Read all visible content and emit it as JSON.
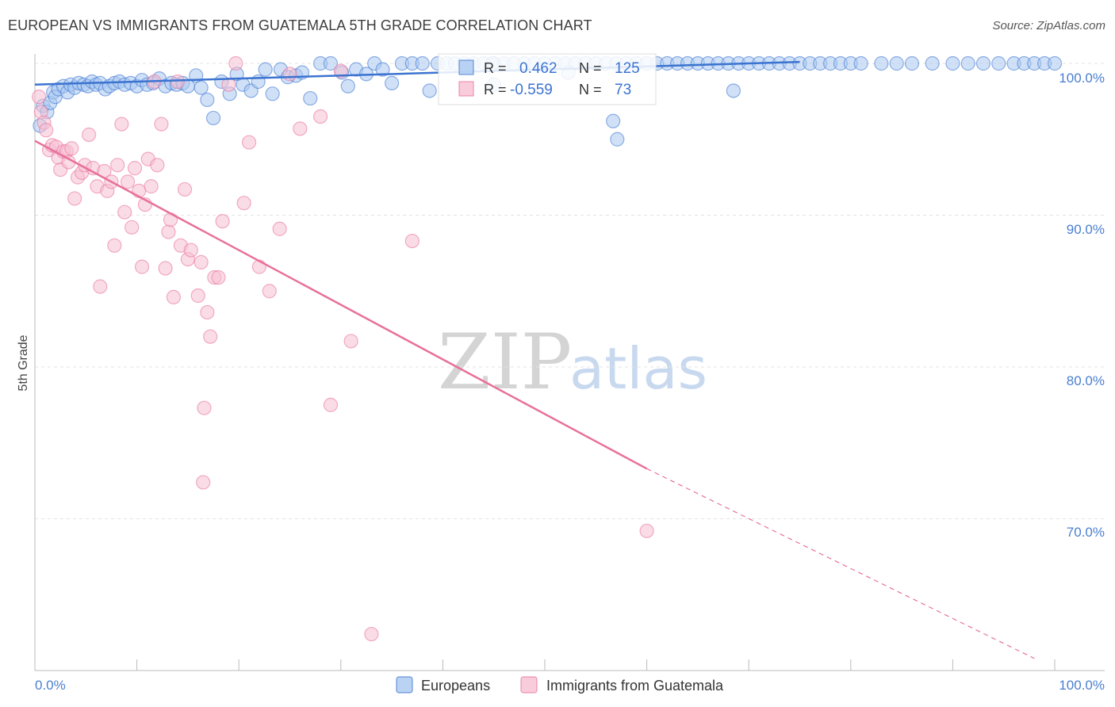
{
  "title": "EUROPEAN VS IMMIGRANTS FROM GUATEMALA 5TH GRADE CORRELATION CHART",
  "source": "Source: ZipAtlas.com",
  "colors": {
    "blue": "#3b73d0",
    "blue_fill": "#a9c8f0",
    "pink": "#e8709a",
    "pink_fill": "#f6bfd1",
    "tick": "#4a7fd0",
    "grid": "#e3e3e3"
  },
  "chart_data": {
    "type": "scatter",
    "title": "EUROPEAN VS IMMIGRANTS FROM GUATEMALA 5TH GRADE CORRELATION CHART",
    "xlabel": "",
    "ylabel": "5th Grade",
    "xlim": [
      0,
      100
    ],
    "ylim": [
      60.5,
      101.5
    ],
    "x_ticks": [
      "0.0%",
      "100.0%"
    ],
    "y_ticks": [
      {
        "value": 100,
        "label": "100.0%"
      },
      {
        "value": 90,
        "label": "90.0%"
      },
      {
        "value": 80,
        "label": "80.0%"
      },
      {
        "value": 70,
        "label": "70.0%"
      }
    ],
    "legend_position": "bottom",
    "stats": [
      {
        "r_label": "R =",
        "r": "0.462",
        "n_label": "N =",
        "n": "125"
      },
      {
        "r_label": "R =",
        "r": "-0.559",
        "n_label": "N =",
        "n": "73"
      }
    ],
    "watermark": {
      "zip": "ZIP",
      "atlas": "atlas"
    },
    "series": [
      {
        "name": "Europeans",
        "color": "#3b73d0",
        "fill": "#a9c8f0",
        "trend": {
          "x0": 0,
          "y0": 98.6,
          "x1": 75,
          "y1": 100.1
        },
        "points": [
          [
            0.5,
            95.9
          ],
          [
            0.8,
            97.2
          ],
          [
            1.2,
            96.8
          ],
          [
            1.5,
            97.4
          ],
          [
            1.8,
            98.1
          ],
          [
            2.0,
            97.8
          ],
          [
            2.3,
            98.3
          ],
          [
            2.8,
            98.5
          ],
          [
            3.2,
            98.1
          ],
          [
            3.5,
            98.6
          ],
          [
            3.9,
            98.4
          ],
          [
            4.3,
            98.7
          ],
          [
            4.8,
            98.6
          ],
          [
            5.2,
            98.5
          ],
          [
            5.6,
            98.8
          ],
          [
            6.0,
            98.6
          ],
          [
            6.4,
            98.7
          ],
          [
            6.9,
            98.3
          ],
          [
            7.3,
            98.5
          ],
          [
            7.8,
            98.7
          ],
          [
            8.3,
            98.8
          ],
          [
            8.8,
            98.6
          ],
          [
            9.4,
            98.7
          ],
          [
            10.0,
            98.5
          ],
          [
            10.5,
            98.9
          ],
          [
            11.0,
            98.6
          ],
          [
            11.6,
            98.7
          ],
          [
            12.2,
            99.0
          ],
          [
            12.8,
            98.5
          ],
          [
            13.4,
            98.7
          ],
          [
            13.9,
            98.6
          ],
          [
            14.5,
            98.7
          ],
          [
            15.0,
            98.5
          ],
          [
            15.8,
            99.2
          ],
          [
            16.3,
            98.4
          ],
          [
            16.9,
            97.6
          ],
          [
            17.5,
            96.4
          ],
          [
            18.3,
            98.8
          ],
          [
            19.1,
            98.0
          ],
          [
            19.8,
            99.3
          ],
          [
            20.4,
            98.6
          ],
          [
            21.2,
            98.2
          ],
          [
            21.9,
            98.8
          ],
          [
            22.6,
            99.6
          ],
          [
            23.3,
            98.0
          ],
          [
            24.1,
            99.6
          ],
          [
            24.8,
            99.1
          ],
          [
            25.6,
            99.2
          ],
          [
            26.2,
            99.4
          ],
          [
            27.0,
            97.7
          ],
          [
            28.0,
            100.0
          ],
          [
            29.0,
            100.0
          ],
          [
            30.1,
            99.4
          ],
          [
            30.7,
            98.5
          ],
          [
            31.5,
            99.6
          ],
          [
            32.5,
            99.3
          ],
          [
            33.3,
            100.0
          ],
          [
            34.1,
            99.6
          ],
          [
            35.0,
            98.7
          ],
          [
            36.0,
            100.0
          ],
          [
            37.0,
            100.0
          ],
          [
            38.0,
            100.0
          ],
          [
            38.7,
            98.2
          ],
          [
            39.5,
            100.0
          ],
          [
            40.4,
            100.0
          ],
          [
            41.2,
            100.0
          ],
          [
            42.1,
            100.0
          ],
          [
            43.0,
            100.0
          ],
          [
            44.0,
            100.0
          ],
          [
            45.0,
            100.0
          ],
          [
            46.0,
            100.0
          ],
          [
            47.0,
            100.0
          ],
          [
            48.0,
            100.0
          ],
          [
            49.0,
            100.0
          ],
          [
            50.0,
            100.0
          ],
          [
            51.0,
            100.0
          ],
          [
            52.0,
            100.0
          ],
          [
            53.0,
            100.0
          ],
          [
            54.0,
            100.0
          ],
          [
            55.0,
            100.0
          ],
          [
            56.0,
            100.0
          ],
          [
            57.0,
            100.0
          ],
          [
            58.0,
            100.0
          ],
          [
            59.0,
            100.0
          ],
          [
            60.0,
            100.0
          ],
          [
            61.0,
            100.0
          ],
          [
            62.0,
            100.0
          ],
          [
            63.0,
            100.0
          ],
          [
            64.0,
            100.0
          ],
          [
            65.0,
            100.0
          ],
          [
            66.0,
            100.0
          ],
          [
            67.0,
            100.0
          ],
          [
            68.0,
            100.0
          ],
          [
            69.0,
            100.0
          ],
          [
            70.0,
            100.0
          ],
          [
            71.0,
            100.0
          ],
          [
            72.0,
            100.0
          ],
          [
            73.0,
            100.0
          ],
          [
            74.0,
            100.0
          ],
          [
            75.0,
            100.0
          ],
          [
            76.0,
            100.0
          ],
          [
            77.0,
            100.0
          ],
          [
            78.0,
            100.0
          ],
          [
            79.0,
            100.0
          ],
          [
            80.0,
            100.0
          ],
          [
            81.0,
            100.0
          ],
          [
            83.0,
            100.0
          ],
          [
            84.5,
            100.0
          ],
          [
            86.0,
            100.0
          ],
          [
            88.0,
            100.0
          ],
          [
            90.0,
            100.0
          ],
          [
            91.5,
            100.0
          ],
          [
            93.0,
            100.0
          ],
          [
            94.5,
            100.0
          ],
          [
            96.0,
            100.0
          ],
          [
            97.0,
            100.0
          ],
          [
            98.0,
            100.0
          ],
          [
            99.0,
            100.0
          ],
          [
            100.0,
            100.0
          ],
          [
            44.9,
            100.0
          ],
          [
            52.3,
            99.4
          ],
          [
            56.7,
            96.2
          ],
          [
            57.1,
            95.0
          ],
          [
            68.5,
            98.2
          ],
          [
            45.0,
            98.6
          ]
        ]
      },
      {
        "name": "Immigrants from Guatemala",
        "color": "#e8709a",
        "fill": "#f6bfd1",
        "trend": {
          "x0": 0,
          "y0": 94.9,
          "x1": 60,
          "y1": 73.3
        },
        "trend_dashed": {
          "x0": 60,
          "y0": 73.3,
          "x1": 98,
          "y1": 60.8
        },
        "points": [
          [
            0.4,
            97.8
          ],
          [
            0.6,
            96.8
          ],
          [
            0.9,
            96.1
          ],
          [
            1.1,
            95.6
          ],
          [
            1.4,
            94.3
          ],
          [
            1.7,
            94.6
          ],
          [
            2.1,
            94.5
          ],
          [
            2.3,
            93.8
          ],
          [
            2.5,
            93.0
          ],
          [
            2.8,
            94.2
          ],
          [
            3.1,
            94.2
          ],
          [
            3.3,
            93.5
          ],
          [
            3.6,
            94.4
          ],
          [
            3.9,
            91.1
          ],
          [
            4.2,
            92.5
          ],
          [
            4.6,
            92.8
          ],
          [
            4.9,
            93.3
          ],
          [
            5.3,
            95.3
          ],
          [
            5.7,
            93.1
          ],
          [
            6.1,
            91.9
          ],
          [
            6.4,
            85.3
          ],
          [
            6.8,
            92.9
          ],
          [
            7.1,
            91.6
          ],
          [
            7.5,
            92.2
          ],
          [
            7.8,
            88.0
          ],
          [
            8.1,
            93.3
          ],
          [
            8.5,
            96.0
          ],
          [
            8.8,
            90.2
          ],
          [
            9.1,
            92.2
          ],
          [
            9.5,
            89.2
          ],
          [
            9.8,
            93.1
          ],
          [
            10.2,
            91.6
          ],
          [
            10.5,
            86.6
          ],
          [
            10.8,
            90.7
          ],
          [
            11.1,
            93.7
          ],
          [
            11.4,
            91.9
          ],
          [
            11.7,
            98.8
          ],
          [
            12.0,
            93.3
          ],
          [
            12.4,
            96.0
          ],
          [
            12.8,
            86.5
          ],
          [
            13.1,
            88.9
          ],
          [
            13.3,
            89.7
          ],
          [
            13.6,
            84.6
          ],
          [
            14.0,
            98.8
          ],
          [
            14.3,
            88.0
          ],
          [
            14.7,
            91.7
          ],
          [
            15.0,
            87.1
          ],
          [
            15.3,
            87.7
          ],
          [
            16.0,
            84.7
          ],
          [
            16.3,
            86.9
          ],
          [
            16.6,
            77.3
          ],
          [
            16.9,
            83.6
          ],
          [
            17.2,
            82.0
          ],
          [
            17.6,
            85.9
          ],
          [
            18.0,
            85.9
          ],
          [
            18.4,
            89.6
          ],
          [
            19.0,
            98.6
          ],
          [
            19.7,
            100.0
          ],
          [
            20.5,
            90.8
          ],
          [
            21.0,
            94.8
          ],
          [
            22.0,
            86.6
          ],
          [
            23.0,
            85.0
          ],
          [
            24.0,
            89.1
          ],
          [
            25.0,
            99.3
          ],
          [
            26.0,
            95.7
          ],
          [
            28.0,
            96.5
          ],
          [
            29.0,
            77.5
          ],
          [
            30.0,
            99.5
          ],
          [
            31.0,
            81.7
          ],
          [
            33.0,
            62.4
          ],
          [
            37.0,
            88.3
          ],
          [
            60.0,
            69.2
          ],
          [
            16.5,
            72.4
          ]
        ]
      }
    ]
  }
}
